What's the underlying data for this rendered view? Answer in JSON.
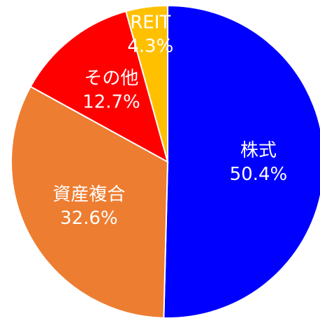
{
  "chart_data": {
    "type": "pie",
    "categories": [
      "株式",
      "資産複合",
      "その他",
      "REIT"
    ],
    "values": [
      50.4,
      32.6,
      12.7,
      4.3
    ],
    "value_labels": [
      "50.4%",
      "32.6%",
      "12.7%",
      "4.3%"
    ],
    "colors": [
      "#0000ff",
      "#ed7d31",
      "#ff0000",
      "#ffc000"
    ],
    "start_angle": 0,
    "direction": "clockwise"
  }
}
